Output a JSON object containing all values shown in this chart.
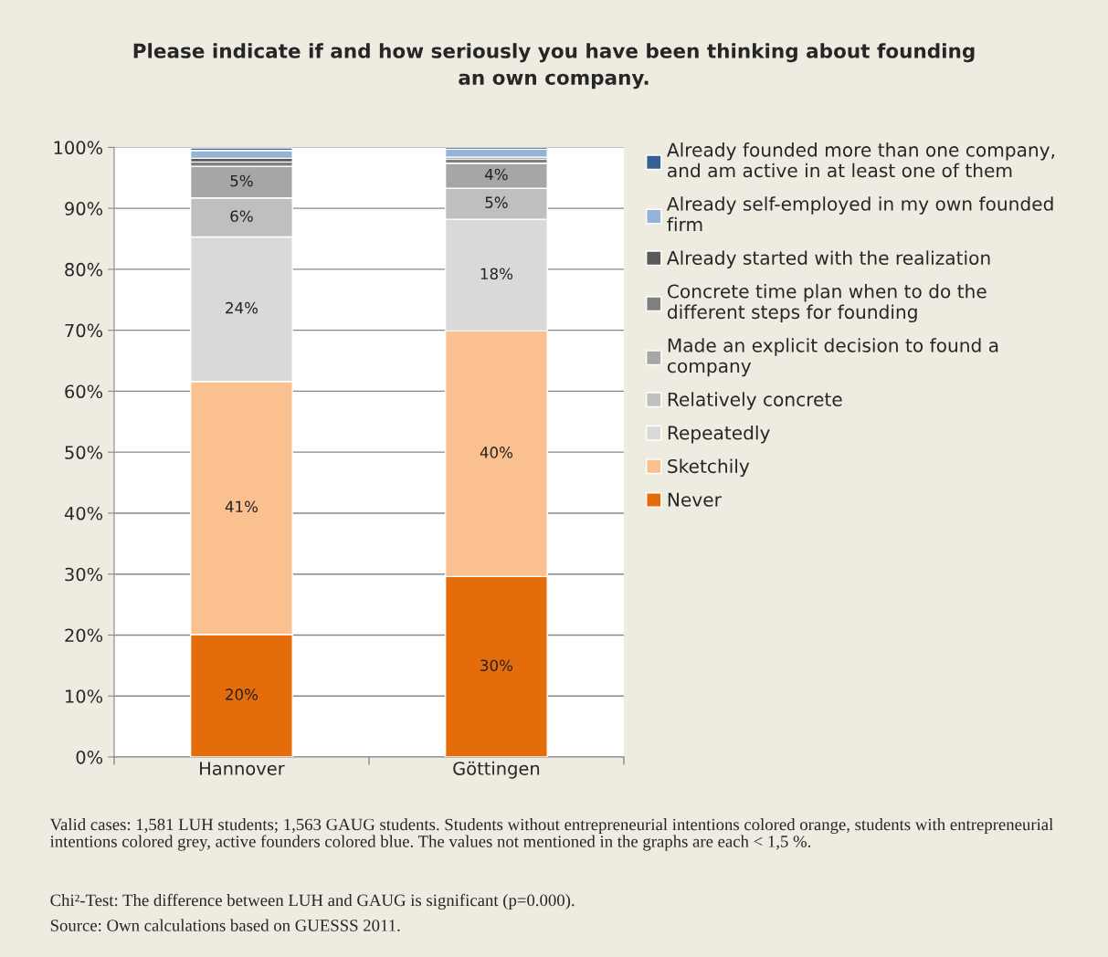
{
  "chart_data": {
    "type": "bar",
    "stacked": true,
    "title": "Please indicate if and how seriously you have been thinking about founding\nan own company.",
    "categories": [
      "Hannover",
      "Göttingen"
    ],
    "series": [
      {
        "name": "Never",
        "color": "#e46c0a",
        "values": [
          20.1,
          29.6
        ],
        "value_labels": [
          "20%",
          "30%"
        ]
      },
      {
        "name": "Sketchily",
        "color": "#fac090",
        "values": [
          41.5,
          40.3
        ],
        "value_labels": [
          "41%",
          "40%"
        ]
      },
      {
        "name": "Repeatedly",
        "color": "#d9d9d9",
        "values": [
          23.7,
          18.3
        ],
        "value_labels": [
          "24%",
          "18%"
        ]
      },
      {
        "name": "Relatively concrete",
        "color": "#bfbfbf",
        "values": [
          6.4,
          5.1
        ],
        "value_labels": [
          "6%",
          "5%"
        ]
      },
      {
        "name": "Made an explicit decision to found a\ncompany",
        "color": "#a6a6a6",
        "values": [
          5.2,
          4.1
        ],
        "value_labels": [
          "5%",
          "4%"
        ]
      },
      {
        "name": "Concrete time plan when to do the\ndifferent steps for founding",
        "color": "#7f7f7f",
        "values": [
          0.7,
          0.7
        ]
      },
      {
        "name": "Already started with the realization",
        "color": "#595959",
        "values": [
          0.6,
          0.3
        ]
      },
      {
        "name": "Already self-employed in my own founded\nfirm",
        "color": "#95b3d7",
        "values": [
          1.3,
          1.3
        ]
      },
      {
        "name": "Already founded more than one company,\nand am active in at least one of them",
        "color": "#376092",
        "values": [
          0.4,
          0.3
        ]
      }
    ],
    "ylim": [
      0,
      100
    ],
    "yticks": [
      {
        "value": 0,
        "label": "0%"
      },
      {
        "value": 10,
        "label": "10%"
      },
      {
        "value": 20,
        "label": "20%"
      },
      {
        "value": 30,
        "label": "30%"
      },
      {
        "value": 40,
        "label": "40%"
      },
      {
        "value": 50,
        "label": "50%"
      },
      {
        "value": 60,
        "label": "60%"
      },
      {
        "value": 70,
        "label": "70%"
      },
      {
        "value": 80,
        "label": "80%"
      },
      {
        "value": 90,
        "label": "90%"
      },
      {
        "value": 100,
        "label": "100%"
      }
    ],
    "grid": "y",
    "legend": "right",
    "annotations": [
      "Valid cases: 1,581 LUH students; 1,563 GAUG students. Students without entrepreneurial intentions colored orange, students with entrepreneurial intentions colored grey, active founders colored blue. The values not mentioned in the graphs are each < 1,5 %.",
      "Chi²-Test: The difference between LUH and GAUG is significant (p=0.000).",
      "Source: Own calculations based on GUESSS 2011."
    ]
  }
}
